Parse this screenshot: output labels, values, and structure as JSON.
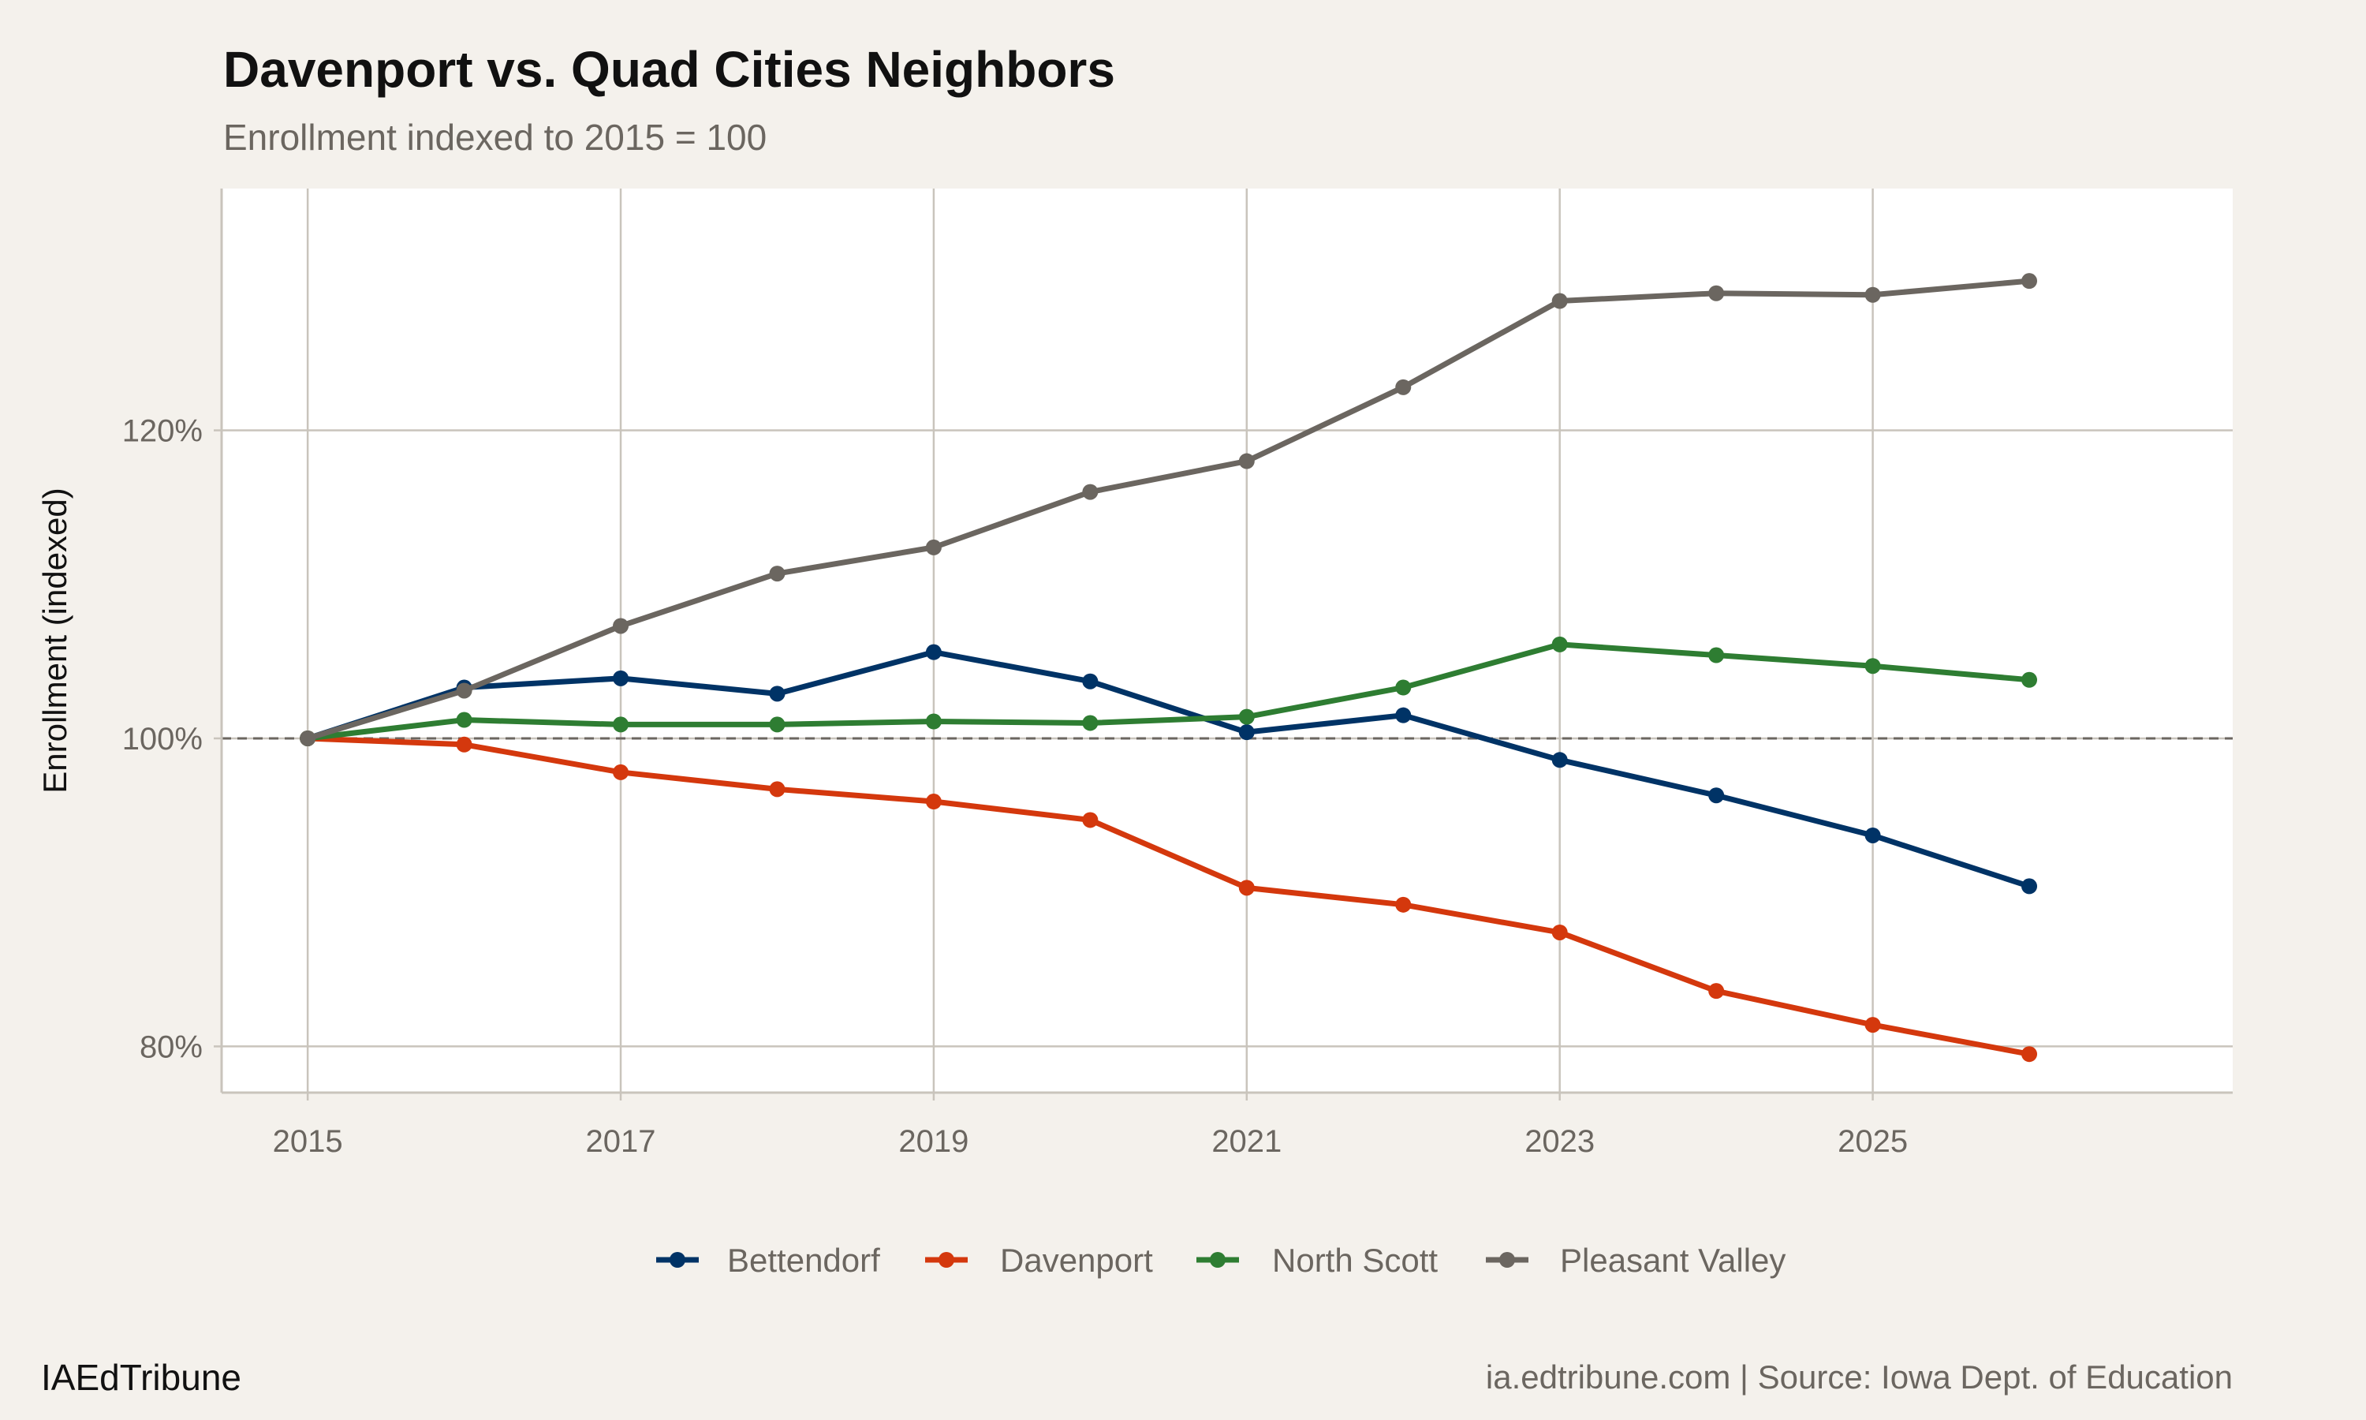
{
  "chart_data": {
    "type": "line",
    "title": "Davenport vs. Quad Cities Neighbors",
    "subtitle": "Enrollment indexed to 2015 = 100",
    "xlabel": "",
    "ylabel": "Enrollment (indexed)",
    "x": [
      2015,
      2016,
      2017,
      2018,
      2019,
      2020,
      2021,
      2022,
      2023,
      2024,
      2025,
      2026
    ],
    "xlim": [
      2014.45,
      2027.3
    ],
    "ylim": [
      77.0,
      135.7
    ],
    "x_ticks": [
      2015,
      2017,
      2019,
      2021,
      2023,
      2025
    ],
    "x_tick_labels": [
      "2015",
      "2017",
      "2019",
      "2021",
      "2023",
      "2025"
    ],
    "y_ticks": [
      80,
      100,
      120
    ],
    "y_tick_labels": [
      "80%",
      "100%",
      "120%"
    ],
    "reference_line": {
      "y": 100,
      "style": "dashed",
      "color": "#6b6660"
    },
    "grid": true,
    "legend_position": "bottom",
    "series": [
      {
        "name": "Bettendorf",
        "color": "#003366",
        "values": [
          100,
          103.3,
          103.9,
          102.9,
          105.6,
          103.7,
          100.4,
          101.5,
          98.6,
          96.3,
          93.7,
          90.4
        ]
      },
      {
        "name": "Davenport",
        "color": "#D4380D",
        "values": [
          100,
          99.6,
          97.8,
          96.7,
          95.9,
          94.7,
          90.3,
          89.2,
          87.4,
          83.6,
          81.4,
          79.5
        ]
      },
      {
        "name": "North Scott",
        "color": "#2E7D32",
        "values": [
          100,
          101.2,
          100.9,
          100.9,
          101.1,
          101.0,
          101.4,
          103.3,
          106.1,
          105.4,
          104.7,
          103.8
        ]
      },
      {
        "name": "Pleasant Valley",
        "color": "#6B6660",
        "values": [
          100,
          103.1,
          107.3,
          110.7,
          112.4,
          116.0,
          118.0,
          122.8,
          128.4,
          128.9,
          128.8,
          129.7
        ]
      }
    ]
  },
  "footer": {
    "brand": "IAEdTribune",
    "source": "ia.edtribune.com | Source: Iowa Dept. of Education"
  },
  "colors": {
    "background": "#F4F1EC",
    "panel": "#FFFFFF",
    "grid": "#C9C4BC"
  }
}
